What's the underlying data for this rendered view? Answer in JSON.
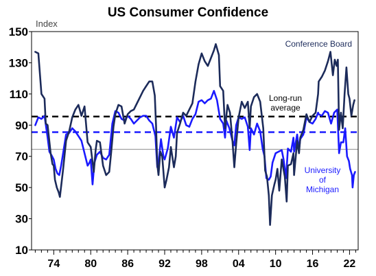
{
  "chart_data": {
    "type": "line",
    "title": "US Consumer Confidence",
    "ylabel": "Index",
    "xlabel": "",
    "ylim": [
      10,
      150
    ],
    "xlim": [
      1970.4,
      2023.4
    ],
    "yticks": [
      10,
      30,
      50,
      70,
      90,
      110,
      130,
      150
    ],
    "xticks": [
      1974,
      1980,
      1986,
      1992,
      1998,
      2004,
      2010,
      2016,
      2022
    ],
    "xtick_labels": [
      "74",
      "80",
      "86",
      "92",
      "98",
      "04",
      "10",
      "16",
      "22"
    ],
    "grid": false,
    "reference_line": {
      "y": 74.5,
      "color": "#a0a0a0"
    },
    "series": [
      {
        "name": "Conference Board",
        "color": "#1c2b5a",
        "average": 95.5,
        "points": [
          [
            1971.0,
            137
          ],
          [
            1971.5,
            136
          ],
          [
            1972.0,
            110
          ],
          [
            1972.5,
            107
          ],
          [
            1972.7,
            91
          ],
          [
            1973.0,
            90
          ],
          [
            1973.5,
            72
          ],
          [
            1973.8,
            65
          ],
          [
            1974.0,
            64
          ],
          [
            1974.2,
            55
          ],
          [
            1974.5,
            50
          ],
          [
            1974.8,
            47
          ],
          [
            1975.0,
            44
          ],
          [
            1975.5,
            61
          ],
          [
            1976.0,
            80
          ],
          [
            1976.5,
            86
          ],
          [
            1977.0,
            95
          ],
          [
            1977.5,
            100
          ],
          [
            1978.0,
            103
          ],
          [
            1978.5,
            96
          ],
          [
            1979.0,
            102
          ],
          [
            1979.5,
            79
          ],
          [
            1980.0,
            76
          ],
          [
            1980.5,
            60
          ],
          [
            1980.8,
            74
          ],
          [
            1981.0,
            80
          ],
          [
            1981.5,
            79
          ],
          [
            1982.0,
            64
          ],
          [
            1982.5,
            58
          ],
          [
            1983.0,
            60
          ],
          [
            1983.3,
            72
          ],
          [
            1983.7,
            89
          ],
          [
            1984.0,
            97
          ],
          [
            1984.5,
            103
          ],
          [
            1985.0,
            102
          ],
          [
            1985.5,
            91
          ],
          [
            1986.0,
            97
          ],
          [
            1986.5,
            99
          ],
          [
            1987.0,
            100
          ],
          [
            1987.5,
            104
          ],
          [
            1988.0,
            108
          ],
          [
            1988.5,
            112
          ],
          [
            1989.0,
            115
          ],
          [
            1989.5,
            118
          ],
          [
            1990.0,
            118
          ],
          [
            1990.4,
            109
          ],
          [
            1990.6,
            90
          ],
          [
            1990.8,
            65
          ],
          [
            1991.0,
            58
          ],
          [
            1991.3,
            73
          ],
          [
            1991.6,
            70
          ],
          [
            1992.0,
            50
          ],
          [
            1992.3,
            55
          ],
          [
            1992.7,
            63
          ],
          [
            1993.0,
            76
          ],
          [
            1993.5,
            63
          ],
          [
            1993.8,
            70
          ],
          [
            1994.0,
            85
          ],
          [
            1994.5,
            91
          ],
          [
            1995.0,
            98
          ],
          [
            1995.5,
            96
          ],
          [
            1996.0,
            100
          ],
          [
            1996.5,
            104
          ],
          [
            1997.0,
            118
          ],
          [
            1997.5,
            129
          ],
          [
            1998.0,
            136
          ],
          [
            1998.5,
            131
          ],
          [
            1999.0,
            128
          ],
          [
            1999.5,
            133
          ],
          [
            2000.0,
            138
          ],
          [
            2000.3,
            142
          ],
          [
            2000.8,
            135
          ],
          [
            2001.0,
            115
          ],
          [
            2001.5,
            112
          ],
          [
            2001.8,
            88
          ],
          [
            2002.2,
            103
          ],
          [
            2002.6,
            98
          ],
          [
            2003.0,
            80
          ],
          [
            2003.3,
            63
          ],
          [
            2003.6,
            78
          ],
          [
            2004.0,
            95
          ],
          [
            2004.5,
            105
          ],
          [
            2005.0,
            101
          ],
          [
            2005.5,
            105
          ],
          [
            2005.8,
            88
          ],
          [
            2006.0,
            102
          ],
          [
            2006.5,
            108
          ],
          [
            2007.0,
            110
          ],
          [
            2007.5,
            105
          ],
          [
            2008.0,
            88
          ],
          [
            2008.3,
            61
          ],
          [
            2008.6,
            57
          ],
          [
            2008.9,
            45
          ],
          [
            2009.1,
            26
          ],
          [
            2009.4,
            45
          ],
          [
            2009.8,
            52
          ],
          [
            2010.0,
            55
          ],
          [
            2010.3,
            62
          ],
          [
            2010.6,
            48
          ],
          [
            2011.0,
            68
          ],
          [
            2011.5,
            57
          ],
          [
            2011.8,
            41
          ],
          [
            2012.0,
            64
          ],
          [
            2012.5,
            65
          ],
          [
            2012.9,
            72
          ],
          [
            2013.0,
            58
          ],
          [
            2013.5,
            80
          ],
          [
            2013.8,
            72
          ],
          [
            2014.0,
            82
          ],
          [
            2014.5,
            87
          ],
          [
            2015.0,
            97
          ],
          [
            2015.5,
            92
          ],
          [
            2016.0,
            96
          ],
          [
            2016.5,
            98
          ],
          [
            2016.9,
            110
          ],
          [
            2017.0,
            118
          ],
          [
            2017.5,
            121
          ],
          [
            2018.0,
            125
          ],
          [
            2018.5,
            131
          ],
          [
            2018.9,
            137
          ],
          [
            2019.3,
            122
          ],
          [
            2019.6,
            132
          ],
          [
            2019.9,
            128
          ],
          [
            2020.1,
            132
          ],
          [
            2020.3,
            87
          ],
          [
            2020.6,
            98
          ],
          [
            2020.9,
            88
          ],
          [
            2021.2,
            110
          ],
          [
            2021.5,
            127
          ],
          [
            2021.8,
            110
          ],
          [
            2022.0,
            107
          ],
          [
            2022.3,
            96
          ],
          [
            2022.6,
            103
          ],
          [
            2022.8,
            106
          ]
        ]
      },
      {
        "name": "University of Michigan",
        "color": "#1a1aff",
        "average": 85.5,
        "points": [
          [
            1971.0,
            90
          ],
          [
            1971.5,
            95
          ],
          [
            1972.0,
            94
          ],
          [
            1972.5,
            96
          ],
          [
            1973.0,
            82
          ],
          [
            1973.3,
            73
          ],
          [
            1973.6,
            71
          ],
          [
            1974.0,
            68
          ],
          [
            1974.3,
            62
          ],
          [
            1974.6,
            59
          ],
          [
            1974.9,
            58
          ],
          [
            1975.2,
            64
          ],
          [
            1975.6,
            74
          ],
          [
            1976.0,
            84
          ],
          [
            1976.5,
            85
          ],
          [
            1977.0,
            88
          ],
          [
            1977.5,
            86
          ],
          [
            1978.0,
            83
          ],
          [
            1978.5,
            80
          ],
          [
            1979.0,
            72
          ],
          [
            1979.5,
            64
          ],
          [
            1979.8,
            66
          ],
          [
            1980.0,
            68
          ],
          [
            1980.3,
            52
          ],
          [
            1980.6,
            66
          ],
          [
            1981.0,
            71
          ],
          [
            1981.5,
            73
          ],
          [
            1982.0,
            69
          ],
          [
            1982.5,
            68
          ],
          [
            1983.0,
            71
          ],
          [
            1983.5,
            91
          ],
          [
            1984.0,
            99
          ],
          [
            1984.5,
            98
          ],
          [
            1985.0,
            94
          ],
          [
            1985.5,
            93
          ],
          [
            1986.0,
            96
          ],
          [
            1986.5,
            94
          ],
          [
            1987.0,
            91
          ],
          [
            1987.5,
            93
          ],
          [
            1988.0,
            95
          ],
          [
            1988.5,
            96
          ],
          [
            1989.0,
            96
          ],
          [
            1989.5,
            93
          ],
          [
            1990.0,
            91
          ],
          [
            1990.5,
            83
          ],
          [
            1990.8,
            63
          ],
          [
            1991.0,
            66
          ],
          [
            1991.4,
            81
          ],
          [
            1991.8,
            70
          ],
          [
            1992.0,
            68
          ],
          [
            1992.5,
            75
          ],
          [
            1993.0,
            89
          ],
          [
            1993.5,
            82
          ],
          [
            1994.0,
            95
          ],
          [
            1994.5,
            92
          ],
          [
            1995.0,
            96
          ],
          [
            1995.5,
            90
          ],
          [
            1996.0,
            89
          ],
          [
            1996.5,
            94
          ],
          [
            1997.0,
            97
          ],
          [
            1997.5,
            105
          ],
          [
            1998.0,
            106
          ],
          [
            1998.5,
            104
          ],
          [
            1999.0,
            106
          ],
          [
            1999.5,
            107
          ],
          [
            2000.0,
            112
          ],
          [
            2000.5,
            106
          ],
          [
            2001.0,
            94
          ],
          [
            2001.5,
            91
          ],
          [
            2001.8,
            82
          ],
          [
            2002.0,
            93
          ],
          [
            2002.5,
            88
          ],
          [
            2003.0,
            80
          ],
          [
            2003.3,
            77
          ],
          [
            2003.6,
            90
          ],
          [
            2004.0,
            95
          ],
          [
            2004.5,
            94
          ],
          [
            2005.0,
            95
          ],
          [
            2005.5,
            89
          ],
          [
            2005.8,
            74
          ],
          [
            2006.0,
            88
          ],
          [
            2006.5,
            84
          ],
          [
            2007.0,
            91
          ],
          [
            2007.5,
            86
          ],
          [
            2007.9,
            75
          ],
          [
            2008.2,
            70
          ],
          [
            2008.5,
            56
          ],
          [
            2008.9,
            55
          ],
          [
            2009.2,
            57
          ],
          [
            2009.5,
            66
          ],
          [
            2010.0,
            72
          ],
          [
            2010.5,
            73
          ],
          [
            2011.0,
            74
          ],
          [
            2011.3,
            68
          ],
          [
            2011.7,
            56
          ],
          [
            2012.0,
            75
          ],
          [
            2012.5,
            73
          ],
          [
            2012.9,
            82
          ],
          [
            2013.0,
            73
          ],
          [
            2013.5,
            84
          ],
          [
            2013.8,
            74
          ],
          [
            2014.0,
            81
          ],
          [
            2014.5,
            84
          ],
          [
            2015.0,
            95
          ],
          [
            2015.5,
            92
          ],
          [
            2016.0,
            91
          ],
          [
            2016.5,
            94
          ],
          [
            2016.9,
            98
          ],
          [
            2017.0,
            97
          ],
          [
            2017.5,
            96
          ],
          [
            2018.0,
            99
          ],
          [
            2018.5,
            98
          ],
          [
            2019.0,
            91
          ],
          [
            2019.5,
            98
          ],
          [
            2020.0,
            100
          ],
          [
            2020.3,
            72
          ],
          [
            2020.6,
            79
          ],
          [
            2021.0,
            79
          ],
          [
            2021.3,
            88
          ],
          [
            2021.6,
            70
          ],
          [
            2021.9,
            67
          ],
          [
            2022.1,
            62
          ],
          [
            2022.4,
            58
          ],
          [
            2022.5,
            50
          ],
          [
            2022.7,
            58
          ],
          [
            2022.9,
            60
          ]
        ]
      }
    ],
    "annotations": {
      "conference_board": "Conference Board",
      "long_run_line1": "Long-run",
      "long_run_line2": "average",
      "michigan_line1": "University",
      "michigan_line2": "of",
      "michigan_line3": "Michigan"
    }
  }
}
